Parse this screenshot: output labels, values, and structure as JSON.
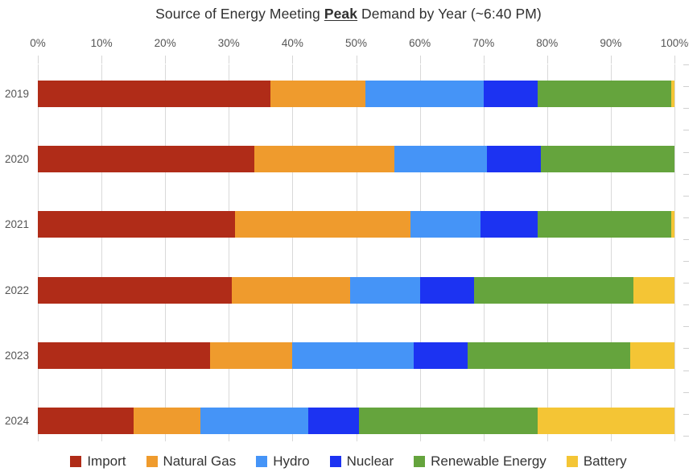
{
  "title": {
    "prefix": "Source of Energy Meeting ",
    "emphasis": "Peak",
    "suffix": " Demand by Year (~6:40 PM)"
  },
  "chart_data": {
    "type": "bar",
    "orientation": "horizontal",
    "stacked": true,
    "title": "Source of Energy Meeting Peak Demand by Year (~6:40 PM)",
    "categories": [
      "2019",
      "2020",
      "2021",
      "2022",
      "2023",
      "2024"
    ],
    "series": [
      {
        "name": "Import",
        "color": "#B02C18",
        "values": [
          36.5,
          34.0,
          31.0,
          30.5,
          27.0,
          15.0
        ]
      },
      {
        "name": "Natural Gas",
        "color": "#EF9B2D",
        "values": [
          15.0,
          22.0,
          27.5,
          18.5,
          13.0,
          10.5
        ]
      },
      {
        "name": "Hydro",
        "color": "#4594F7",
        "values": [
          18.5,
          14.5,
          11.0,
          11.0,
          19.0,
          17.0
        ]
      },
      {
        "name": "Nuclear",
        "color": "#1C33F2",
        "values": [
          8.5,
          8.5,
          9.0,
          8.5,
          8.5,
          8.0
        ]
      },
      {
        "name": "Renewable Energy",
        "color": "#65A43D",
        "values": [
          21.0,
          21.0,
          21.0,
          25.0,
          25.5,
          28.0
        ]
      },
      {
        "name": "Battery",
        "color": "#F4C535",
        "values": [
          0.5,
          0.0,
          0.5,
          6.5,
          7.0,
          21.5
        ]
      }
    ],
    "x_ticks": [
      "0%",
      "10%",
      "20%",
      "30%",
      "40%",
      "50%",
      "60%",
      "70%",
      "80%",
      "90%",
      "100%"
    ],
    "xlim": [
      0,
      100
    ],
    "units": "percent of peak demand",
    "grid": "vertical",
    "legend_position": "bottom"
  },
  "style": {
    "gridline_color": "#d9d9d9",
    "axis_text_color": "#555555",
    "title_color": "#303030",
    "legend_text_color": "#333333",
    "background": "#ffffff"
  }
}
